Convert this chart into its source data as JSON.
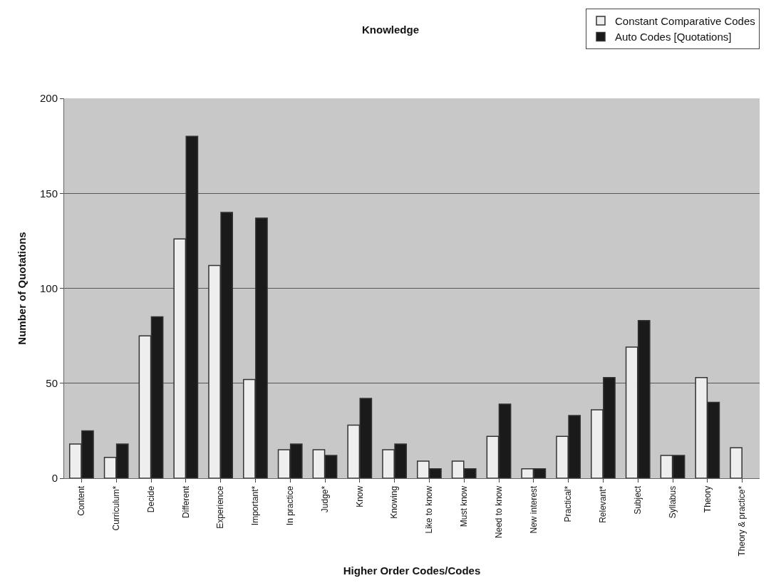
{
  "chart_data": {
    "type": "bar",
    "title": "Knowledge",
    "xlabel": "Higher Order Codes/Codes",
    "ylabel": "Number of Quotations",
    "categories": [
      "Content",
      "Curriculum*",
      "Decide",
      "Different",
      "Experience",
      "Important*",
      "In practice",
      "Judge*",
      "Know",
      "Knowing",
      "Like to know",
      "Must know",
      "Need to know",
      "New interest",
      "Practical*",
      "Relevant*",
      "Subject",
      "Syllabus",
      "Theory",
      "Theory & practice*"
    ],
    "series": [
      {
        "name": "Constant Comparative Codes",
        "color": "#eeeeee",
        "values": [
          18,
          11,
          75,
          126,
          112,
          52,
          15,
          15,
          28,
          15,
          9,
          9,
          22,
          5,
          22,
          36,
          69,
          12,
          53,
          16
        ]
      },
      {
        "name": "Auto Codes [Quotations]",
        "color": "#1a1a1a",
        "values": [
          25,
          18,
          85,
          180,
          140,
          137,
          18,
          12,
          42,
          18,
          5,
          5,
          39,
          5,
          33,
          53,
          83,
          12,
          40,
          null
        ]
      }
    ],
    "ylim": [
      0,
      200
    ],
    "yticks": [
      0,
      50,
      100,
      150,
      200
    ],
    "grid": "y",
    "legend": "top right"
  }
}
